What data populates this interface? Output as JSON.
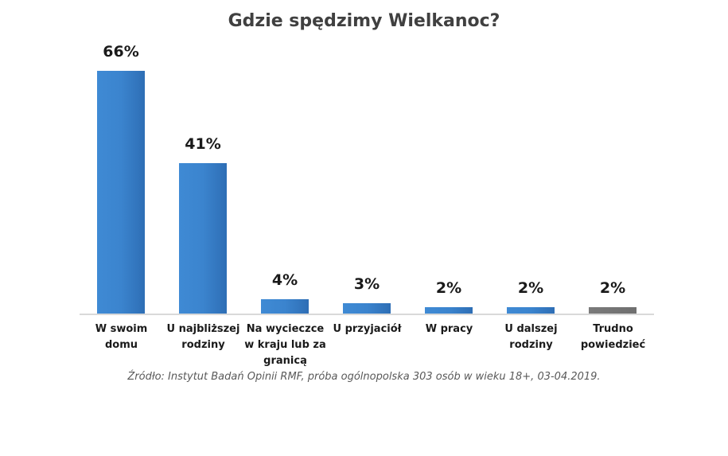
{
  "chart": {
    "title": "Gdzie spędzimy Wielkanoc?",
    "source": "Źródło: Instytut Badań Opinii RMF, próba ogólnopolska 303 osób w wieku 18+, 03-04.2019.",
    "bars": [
      {
        "label": "W swoim domu",
        "value_label": "66%"
      },
      {
        "label": "U najbliższej rodziny",
        "value_label": "41%"
      },
      {
        "label": "Na wycieczce w kraju lub za granicą",
        "value_label": "4%"
      },
      {
        "label": "U przyjaciół",
        "value_label": "3%"
      },
      {
        "label": "W pracy",
        "value_label": "2%"
      },
      {
        "label": "U dalszej rodziny",
        "value_label": "2%"
      },
      {
        "label": "Trudno powiedzieć",
        "value_label": "2%"
      }
    ]
  },
  "colors": {
    "bar_primary": "#3b84ce",
    "bar_secondary": "#737373",
    "axis": "#d9d9d9",
    "title": "#404040"
  },
  "chart_data": {
    "type": "bar",
    "title": "Gdzie spędzimy Wielkanoc?",
    "categories": [
      "W swoim domu",
      "U najbliższej rodziny",
      "Na wycieczce w kraju lub za granicą",
      "U przyjaciół",
      "W pracy",
      "U dalszej rodziny",
      "Trudno powiedzieć"
    ],
    "values": [
      66,
      41,
      4,
      3,
      2,
      2,
      2
    ],
    "unit": "%",
    "xlabel": "",
    "ylabel": "",
    "ylim": [
      0,
      70
    ],
    "grid": false,
    "legend": null,
    "annotations": [
      "Źródło: Instytut Badań Opinii RMF, próba ogólnopolska 303 osób w wieku 18+, 03-04.2019."
    ]
  }
}
